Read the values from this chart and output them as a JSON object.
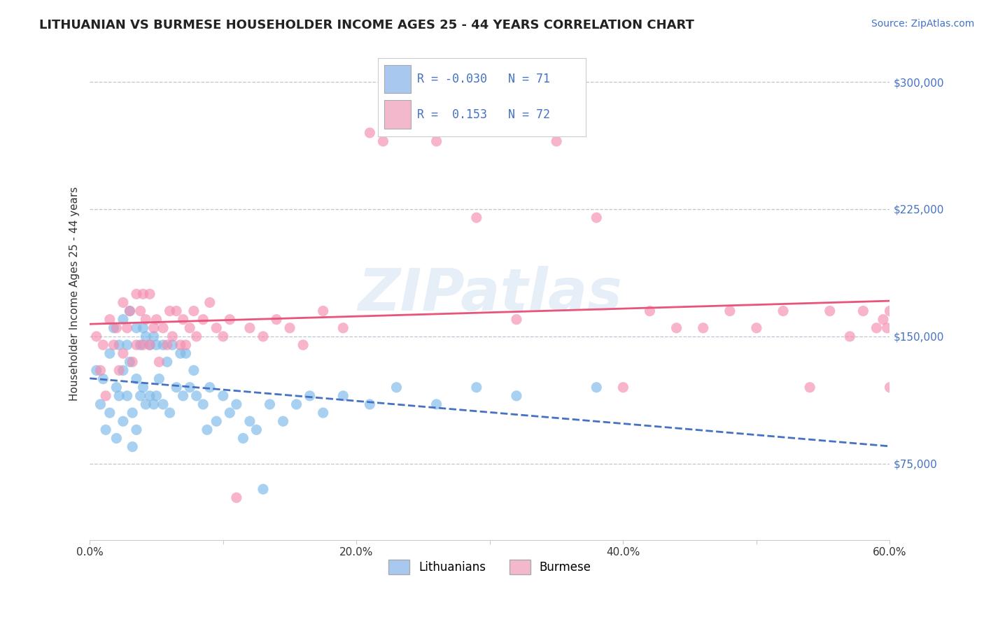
{
  "title": "LITHUANIAN VS BURMESE HOUSEHOLDER INCOME AGES 25 - 44 YEARS CORRELATION CHART",
  "source_text": "Source: ZipAtlas.com",
  "ylabel": "Householder Income Ages 25 - 44 years",
  "xlim": [
    0.0,
    0.6
  ],
  "ylim": [
    30000,
    320000
  ],
  "xticks": [
    0.0,
    0.1,
    0.2,
    0.3,
    0.4,
    0.5,
    0.6
  ],
  "xticklabels": [
    "0.0%",
    "",
    "20.0%",
    "",
    "40.0%",
    "",
    "60.0%"
  ],
  "yticks": [
    75000,
    150000,
    225000,
    300000
  ],
  "yticklabels": [
    "$75,000",
    "$150,000",
    "$225,000",
    "$300,000"
  ],
  "watermark": "ZIPatlas",
  "legend_labels": [
    "Lithuanians",
    "Burmese"
  ],
  "legend_colors": [
    "#a8c8f0",
    "#f4b8cc"
  ],
  "R_lith": -0.03,
  "N_lith": 71,
  "R_burm": 0.153,
  "N_burm": 72,
  "lith_color": "#7ab8e8",
  "burm_color": "#f48cb0",
  "lith_line_color": "#4472c4",
  "burm_line_color": "#e8547a",
  "grid_color": "#b0b8c8",
  "background_color": "#ffffff",
  "lith_scatter_x": [
    0.005,
    0.008,
    0.01,
    0.012,
    0.015,
    0.015,
    0.018,
    0.02,
    0.02,
    0.022,
    0.022,
    0.025,
    0.025,
    0.025,
    0.028,
    0.028,
    0.03,
    0.03,
    0.032,
    0.032,
    0.035,
    0.035,
    0.035,
    0.038,
    0.038,
    0.04,
    0.04,
    0.042,
    0.042,
    0.045,
    0.045,
    0.048,
    0.048,
    0.05,
    0.05,
    0.052,
    0.055,
    0.055,
    0.058,
    0.06,
    0.062,
    0.065,
    0.068,
    0.07,
    0.072,
    0.075,
    0.078,
    0.08,
    0.085,
    0.088,
    0.09,
    0.095,
    0.1,
    0.105,
    0.11,
    0.115,
    0.12,
    0.125,
    0.13,
    0.135,
    0.145,
    0.155,
    0.165,
    0.175,
    0.19,
    0.21,
    0.23,
    0.26,
    0.29,
    0.32,
    0.38
  ],
  "lith_scatter_y": [
    130000,
    110000,
    125000,
    95000,
    140000,
    105000,
    155000,
    120000,
    90000,
    145000,
    115000,
    160000,
    130000,
    100000,
    145000,
    115000,
    165000,
    135000,
    105000,
    85000,
    155000,
    125000,
    95000,
    145000,
    115000,
    155000,
    120000,
    150000,
    110000,
    145000,
    115000,
    150000,
    110000,
    145000,
    115000,
    125000,
    145000,
    110000,
    135000,
    105000,
    145000,
    120000,
    140000,
    115000,
    140000,
    120000,
    130000,
    115000,
    110000,
    95000,
    120000,
    100000,
    115000,
    105000,
    110000,
    90000,
    100000,
    95000,
    60000,
    110000,
    100000,
    110000,
    115000,
    105000,
    115000,
    110000,
    120000,
    110000,
    120000,
    115000,
    120000
  ],
  "burm_scatter_x": [
    0.005,
    0.008,
    0.01,
    0.012,
    0.015,
    0.018,
    0.02,
    0.022,
    0.025,
    0.025,
    0.028,
    0.03,
    0.032,
    0.035,
    0.035,
    0.038,
    0.04,
    0.04,
    0.042,
    0.045,
    0.045,
    0.048,
    0.05,
    0.052,
    0.055,
    0.058,
    0.06,
    0.062,
    0.065,
    0.068,
    0.07,
    0.072,
    0.075,
    0.078,
    0.08,
    0.085,
    0.09,
    0.095,
    0.1,
    0.105,
    0.11,
    0.12,
    0.13,
    0.14,
    0.15,
    0.16,
    0.175,
    0.19,
    0.21,
    0.22,
    0.24,
    0.26,
    0.29,
    0.32,
    0.35,
    0.38,
    0.4,
    0.42,
    0.44,
    0.46,
    0.48,
    0.5,
    0.52,
    0.54,
    0.555,
    0.57,
    0.58,
    0.59,
    0.595,
    0.598,
    0.6,
    0.6
  ],
  "burm_scatter_y": [
    150000,
    130000,
    145000,
    115000,
    160000,
    145000,
    155000,
    130000,
    170000,
    140000,
    155000,
    165000,
    135000,
    175000,
    145000,
    165000,
    175000,
    145000,
    160000,
    175000,
    145000,
    155000,
    160000,
    135000,
    155000,
    145000,
    165000,
    150000,
    165000,
    145000,
    160000,
    145000,
    155000,
    165000,
    150000,
    160000,
    170000,
    155000,
    150000,
    160000,
    55000,
    155000,
    150000,
    160000,
    155000,
    145000,
    165000,
    155000,
    270000,
    265000,
    275000,
    265000,
    220000,
    160000,
    265000,
    220000,
    120000,
    165000,
    155000,
    155000,
    165000,
    155000,
    165000,
    120000,
    165000,
    150000,
    165000,
    155000,
    160000,
    155000,
    120000,
    165000
  ]
}
